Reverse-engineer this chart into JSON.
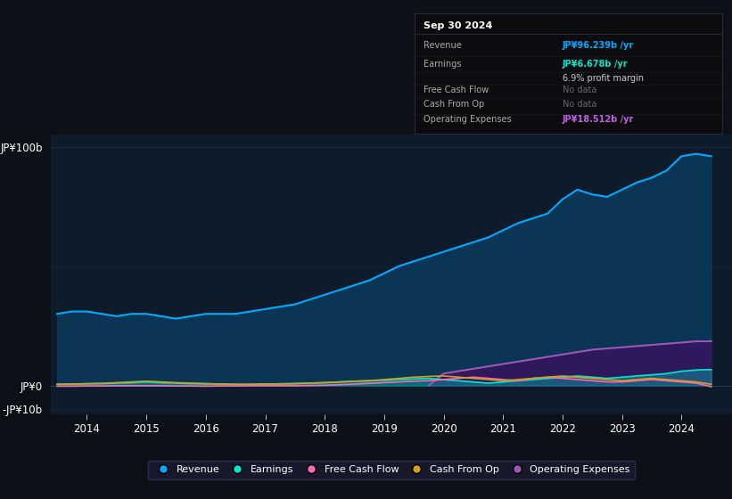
{
  "bg_color": "#0d1117",
  "plot_bg_color": "#0d1b2a",
  "title_box": {
    "date": "Sep 30 2024",
    "revenue_label": "Revenue",
    "revenue_value": "JP¥96.239b /yr",
    "earnings_label": "Earnings",
    "earnings_value": "JP¥6.678b /yr",
    "margin_text": "6.9% profit margin",
    "fcf_label": "Free Cash Flow",
    "fcf_value": "No data",
    "cashfromop_label": "Cash From Op",
    "cashfromop_value": "No data",
    "opex_label": "Operating Expenses",
    "opex_value": "JP¥18.512b /yr"
  },
  "ylabel_top": "JP¥100b",
  "ylabel_zero": "JP¥0",
  "ylabel_bottom": "-JP¥10b",
  "xlabel_ticks": [
    "2014",
    "2015",
    "2016",
    "2017",
    "2018",
    "2019",
    "2020",
    "2021",
    "2022",
    "2023",
    "2024"
  ],
  "legend": [
    {
      "label": "Revenue",
      "color": "#00aaff"
    },
    {
      "label": "Earnings",
      "color": "#00e5cc"
    },
    {
      "label": "Free Cash Flow",
      "color": "#ff69b4"
    },
    {
      "label": "Cash From Op",
      "color": "#d4a017"
    },
    {
      "label": "Operating Expenses",
      "color": "#9b59b6"
    }
  ],
  "revenue": {
    "x": [
      2013.5,
      2013.75,
      2014.0,
      2014.25,
      2014.5,
      2014.75,
      2015.0,
      2015.25,
      2015.5,
      2015.75,
      2016.0,
      2016.25,
      2016.5,
      2016.75,
      2017.0,
      2017.25,
      2017.5,
      2017.75,
      2018.0,
      2018.25,
      2018.5,
      2018.75,
      2019.0,
      2019.25,
      2019.5,
      2019.75,
      2020.0,
      2020.25,
      2020.5,
      2020.75,
      2021.0,
      2021.25,
      2021.5,
      2021.75,
      2022.0,
      2022.25,
      2022.5,
      2022.75,
      2023.0,
      2023.25,
      2023.5,
      2023.75,
      2024.0,
      2024.25,
      2024.5
    ],
    "y": [
      30,
      31,
      31,
      30,
      29,
      30,
      30,
      29,
      28,
      29,
      30,
      30,
      30,
      31,
      32,
      33,
      34,
      36,
      38,
      40,
      42,
      44,
      47,
      50,
      52,
      54,
      56,
      58,
      60,
      62,
      65,
      68,
      70,
      72,
      78,
      82,
      80,
      79,
      82,
      85,
      87,
      90,
      96,
      97,
      96
    ]
  },
  "earnings": {
    "x": [
      2013.5,
      2013.75,
      2014.0,
      2014.25,
      2014.5,
      2014.75,
      2015.0,
      2015.25,
      2015.5,
      2015.75,
      2016.0,
      2016.25,
      2016.5,
      2016.75,
      2017.0,
      2017.25,
      2017.5,
      2017.75,
      2018.0,
      2018.25,
      2018.5,
      2018.75,
      2019.0,
      2019.25,
      2019.5,
      2019.75,
      2020.0,
      2020.25,
      2020.5,
      2020.75,
      2021.0,
      2021.25,
      2021.5,
      2021.75,
      2022.0,
      2022.25,
      2022.5,
      2022.75,
      2023.0,
      2023.25,
      2023.5,
      2023.75,
      2024.0,
      2024.25,
      2024.5
    ],
    "y": [
      0.5,
      0.6,
      0.7,
      0.8,
      1.0,
      1.2,
      1.5,
      1.2,
      1.0,
      0.8,
      0.7,
      0.6,
      0.5,
      0.5,
      0.6,
      0.7,
      0.8,
      1.0,
      1.2,
      1.5,
      1.8,
      2.0,
      2.2,
      2.5,
      2.8,
      3.0,
      2.5,
      2.0,
      1.5,
      1.0,
      1.5,
      2.0,
      2.5,
      3.0,
      3.5,
      4.0,
      3.5,
      3.0,
      3.5,
      4.0,
      4.5,
      5.0,
      6.0,
      6.5,
      6.7
    ]
  },
  "free_cash_flow": {
    "x": [
      2013.5,
      2013.75,
      2014.0,
      2014.25,
      2014.5,
      2014.75,
      2015.0,
      2015.25,
      2015.5,
      2015.75,
      2016.0,
      2016.25,
      2016.5,
      2016.75,
      2017.0,
      2017.25,
      2017.5,
      2017.75,
      2018.0,
      2018.25,
      2018.5,
      2018.75,
      2019.0,
      2019.25,
      2019.5,
      2019.75,
      2020.0,
      2020.25,
      2020.5,
      2020.75,
      2021.0,
      2021.25,
      2021.5,
      2021.75,
      2022.0,
      2022.25,
      2022.5,
      2022.75,
      2023.0,
      2023.25,
      2023.5,
      2023.75,
      2024.0,
      2024.25,
      2024.5
    ],
    "y": [
      -0.3,
      -0.3,
      -0.2,
      -0.2,
      -0.1,
      -0.1,
      -0.1,
      -0.1,
      -0.2,
      -0.2,
      -0.3,
      -0.2,
      -0.2,
      -0.1,
      -0.1,
      -0.1,
      -0.1,
      0.0,
      0.1,
      0.3,
      0.6,
      0.9,
      1.2,
      1.5,
      1.8,
      2.0,
      2.5,
      3.0,
      3.5,
      3.0,
      2.5,
      2.0,
      3.0,
      3.5,
      3.0,
      2.5,
      2.0,
      1.5,
      1.5,
      2.0,
      2.5,
      2.0,
      1.5,
      1.0,
      -0.5
    ]
  },
  "cash_from_op": {
    "x": [
      2013.5,
      2013.75,
      2014.0,
      2014.25,
      2014.5,
      2014.75,
      2015.0,
      2015.25,
      2015.5,
      2015.75,
      2016.0,
      2016.25,
      2016.5,
      2016.75,
      2017.0,
      2017.25,
      2017.5,
      2017.75,
      2018.0,
      2018.25,
      2018.5,
      2018.75,
      2019.0,
      2019.25,
      2019.5,
      2019.75,
      2020.0,
      2020.25,
      2020.5,
      2020.75,
      2021.0,
      2021.25,
      2021.5,
      2021.75,
      2022.0,
      2022.25,
      2022.5,
      2022.75,
      2023.0,
      2023.25,
      2023.5,
      2023.75,
      2024.0,
      2024.25,
      2024.5
    ],
    "y": [
      0.5,
      0.6,
      0.8,
      0.9,
      1.2,
      1.5,
      1.8,
      1.5,
      1.2,
      1.0,
      0.8,
      0.6,
      0.5,
      0.5,
      0.6,
      0.7,
      0.8,
      1.0,
      1.2,
      1.5,
      1.8,
      2.0,
      2.5,
      3.0,
      3.5,
      3.8,
      4.0,
      3.5,
      3.0,
      2.5,
      2.0,
      2.5,
      3.0,
      3.5,
      4.0,
      3.5,
      3.0,
      2.5,
      2.0,
      2.5,
      3.0,
      2.5,
      2.0,
      1.5,
      0.5
    ]
  },
  "operating_expenses": {
    "x": [
      2019.75,
      2020.0,
      2020.25,
      2020.5,
      2020.75,
      2021.0,
      2021.25,
      2021.5,
      2021.75,
      2022.0,
      2022.25,
      2022.5,
      2022.75,
      2023.0,
      2023.25,
      2023.5,
      2023.75,
      2024.0,
      2024.25,
      2024.5
    ],
    "y": [
      0,
      5,
      6,
      7,
      8,
      9,
      10,
      11,
      12,
      13,
      14,
      15,
      15.5,
      16,
      16.5,
      17,
      17.5,
      18,
      18.5,
      18.512
    ]
  },
  "ylim": [
    -12,
    105
  ],
  "xlim": [
    2013.4,
    2024.85
  ],
  "revenue_color": "#00aaff",
  "revenue_fill_color": "#0a3a5c",
  "opex_color": "#9b59b6",
  "opex_fill_color": "#3a1060",
  "earnings_color": "#00e5cc",
  "fcf_color": "#ff69b4",
  "cop_color": "#d4a017",
  "grid_color": "#1e2a3a",
  "zero_line_color": "#2a3a4a"
}
